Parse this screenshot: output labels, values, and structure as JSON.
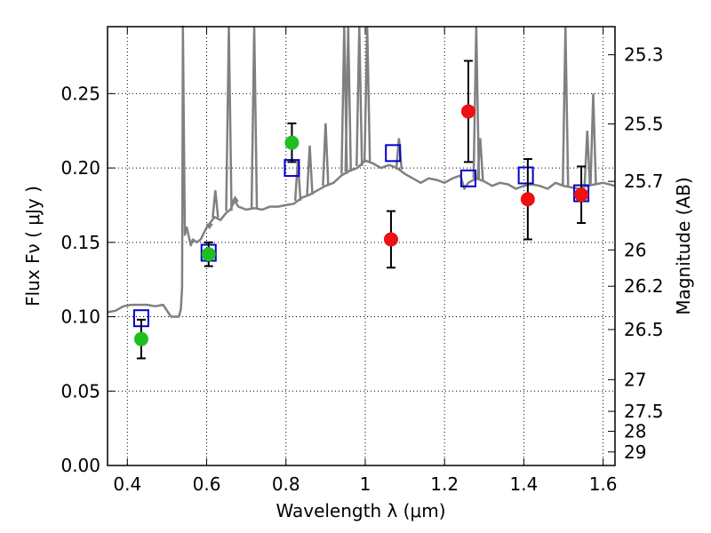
{
  "chart_data": {
    "type": "scatter",
    "xlabel": "Wavelength  λ (μm)",
    "ylabel": "Flux  Fν  ( μJy )",
    "ylabel_right": "Magnitude (AB)",
    "xlim": [
      0.35,
      1.63
    ],
    "ylim": [
      0.0,
      0.295
    ],
    "grid": true,
    "grid_style": "dotted",
    "x_ticks": [
      0.4,
      0.6,
      0.8,
      1.0,
      1.2,
      1.4,
      1.6
    ],
    "x_tick_labels": [
      "0.4",
      "0.6",
      "0.8",
      "1",
      "1.2",
      "1.4",
      "1.6"
    ],
    "y_ticks": [
      0.0,
      0.05,
      0.1,
      0.15,
      0.2,
      0.25
    ],
    "y_tick_labels": [
      "0.00",
      "0.05",
      "0.10",
      "0.15",
      "0.20",
      "0.25"
    ],
    "right_ticks": [
      {
        "label": "25.3",
        "flux": 0.2761
      },
      {
        "label": "25.5",
        "flux": 0.2296
      },
      {
        "label": "25.7",
        "flux": 0.191
      },
      {
        "label": "26",
        "flux": 0.1449
      },
      {
        "label": "26.2",
        "flux": 0.1205
      },
      {
        "label": "26.5",
        "flux": 0.0914
      },
      {
        "label": "27",
        "flux": 0.0577
      },
      {
        "label": "27.5",
        "flux": 0.0364
      },
      {
        "label": "28",
        "flux": 0.023
      },
      {
        "label": "29",
        "flux": 0.0091
      }
    ],
    "colors": {
      "model": "#808080",
      "green": "#1fbf1f",
      "red": "#ee1111",
      "blue": "#0000cc",
      "error": "#000000"
    },
    "series": [
      {
        "kind": "line",
        "color_key": "model",
        "x": [
          0.35,
          0.37,
          0.39,
          0.41,
          0.43,
          0.45,
          0.47,
          0.49,
          0.51,
          0.525,
          0.53,
          0.535,
          0.538,
          0.54,
          0.545,
          0.55,
          0.56,
          0.565,
          0.575,
          0.585,
          0.6,
          0.62,
          0.635,
          0.65,
          0.66,
          0.67,
          0.68,
          0.7,
          0.72,
          0.74,
          0.76,
          0.78,
          0.8,
          0.82,
          0.84,
          0.86,
          0.88,
          0.9,
          0.92,
          0.94,
          0.96,
          0.98,
          1.0,
          1.02,
          1.04,
          1.06,
          1.08,
          1.1,
          1.12,
          1.14,
          1.16,
          1.18,
          1.2,
          1.22,
          1.24,
          1.25,
          1.26,
          1.28,
          1.3,
          1.32,
          1.34,
          1.36,
          1.38,
          1.4,
          1.42,
          1.44,
          1.46,
          1.48,
          1.5,
          1.52,
          1.54,
          1.56,
          1.58,
          1.6,
          1.63
        ],
        "y": [
          0.103,
          0.104,
          0.107,
          0.108,
          0.108,
          0.108,
          0.107,
          0.108,
          0.1,
          0.1,
          0.1,
          0.105,
          0.12,
          0.295,
          0.155,
          0.16,
          0.148,
          0.152,
          0.15,
          0.152,
          0.16,
          0.167,
          0.165,
          0.17,
          0.172,
          0.178,
          0.174,
          0.172,
          0.173,
          0.172,
          0.174,
          0.174,
          0.175,
          0.176,
          0.18,
          0.182,
          0.185,
          0.188,
          0.19,
          0.195,
          0.198,
          0.2,
          0.205,
          0.203,
          0.2,
          0.202,
          0.2,
          0.196,
          0.193,
          0.19,
          0.193,
          0.192,
          0.19,
          0.193,
          0.195,
          0.186,
          0.19,
          0.193,
          0.191,
          0.188,
          0.19,
          0.189,
          0.186,
          0.188,
          0.189,
          0.188,
          0.186,
          0.19,
          0.188,
          0.187,
          0.186,
          0.188,
          0.189,
          0.19,
          0.188
        ],
        "spikes": [
          {
            "x": 0.607,
            "y": 0.16
          },
          {
            "x": 0.622,
            "y": 0.185
          },
          {
            "x": 0.656,
            "y": 0.295
          },
          {
            "x": 0.672,
            "y": 0.18
          },
          {
            "x": 0.72,
            "y": 0.295
          },
          {
            "x": 0.83,
            "y": 0.205
          },
          {
            "x": 0.86,
            "y": 0.215
          },
          {
            "x": 0.9,
            "y": 0.23
          },
          {
            "x": 0.947,
            "y": 0.295
          },
          {
            "x": 0.957,
            "y": 0.295
          },
          {
            "x": 0.985,
            "y": 0.295
          },
          {
            "x": 1.005,
            "y": 0.295
          },
          {
            "x": 1.085,
            "y": 0.22
          },
          {
            "x": 1.28,
            "y": 0.295
          },
          {
            "x": 1.29,
            "y": 0.22
          },
          {
            "x": 1.505,
            "y": 0.295
          },
          {
            "x": 1.56,
            "y": 0.225
          },
          {
            "x": 1.575,
            "y": 0.25
          }
        ]
      },
      {
        "kind": "points",
        "marker": "circle",
        "color_key": "green",
        "x": [
          0.435,
          0.605,
          0.815
        ],
        "y": [
          0.085,
          0.142,
          0.217
        ],
        "yerr": [
          0.013,
          0.008,
          0.013
        ]
      },
      {
        "kind": "points",
        "marker": "circle",
        "color_key": "red",
        "x": [
          1.065,
          1.26,
          1.41,
          1.545
        ],
        "y": [
          0.152,
          0.238,
          0.179,
          0.182
        ],
        "yerr": [
          0.019,
          0.034,
          0.027,
          0.019
        ]
      },
      {
        "kind": "points",
        "marker": "square",
        "color_key": "blue",
        "x": [
          0.435,
          0.605,
          0.815,
          1.07,
          1.26,
          1.405,
          1.545
        ],
        "y": [
          0.099,
          0.143,
          0.2,
          0.21,
          0.193,
          0.195,
          0.183
        ]
      }
    ]
  }
}
